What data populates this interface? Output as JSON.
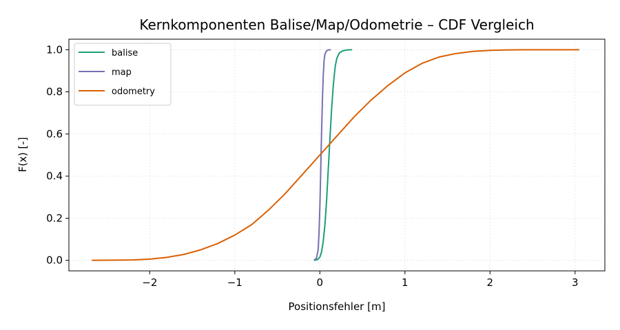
{
  "chart_data": {
    "type": "line",
    "title": "Kernkomponenten Balise/Map/Odometrie – CDF Vergleich",
    "xlabel": "Positionsfehler [m]",
    "ylabel": "F(x) [-]",
    "xlim": [
      -2.95,
      3.35
    ],
    "ylim": [
      -0.05,
      1.05
    ],
    "xticks": [
      -2,
      -1,
      0,
      1,
      2,
      3
    ],
    "xtick_labels": [
      "−2",
      "−1",
      "0",
      "1",
      "2",
      "3"
    ],
    "yticks": [
      0.0,
      0.2,
      0.4,
      0.6,
      0.8,
      1.0
    ],
    "ytick_labels": [
      "0.0",
      "0.2",
      "0.4",
      "0.6",
      "0.8",
      "1.0"
    ],
    "grid": true,
    "legend_position": "top-left",
    "series": [
      {
        "name": "balise",
        "color": "#1b9e77",
        "x": [
          -0.07,
          -0.03,
          0.0,
          0.02,
          0.04,
          0.06,
          0.08,
          0.1,
          0.12,
          0.14,
          0.16,
          0.18,
          0.2,
          0.23,
          0.27,
          0.32,
          0.38
        ],
        "y": [
          0.0,
          0.003,
          0.015,
          0.04,
          0.09,
          0.17,
          0.29,
          0.44,
          0.59,
          0.73,
          0.84,
          0.92,
          0.96,
          0.985,
          0.995,
          0.999,
          1.0
        ]
      },
      {
        "name": "map",
        "color": "#7570b3",
        "x": [
          -0.07,
          -0.04,
          -0.02,
          -0.01,
          0.0,
          0.01,
          0.02,
          0.03,
          0.04,
          0.05,
          0.06,
          0.08,
          0.1,
          0.13
        ],
        "y": [
          0.0,
          0.01,
          0.05,
          0.13,
          0.25,
          0.42,
          0.6,
          0.76,
          0.88,
          0.95,
          0.98,
          0.995,
          0.999,
          1.0
        ]
      },
      {
        "name": "odometry",
        "color": "#d95f02",
        "x": [
          -2.68,
          -2.4,
          -2.2,
          -2.0,
          -1.8,
          -1.6,
          -1.4,
          -1.2,
          -1.0,
          -0.8,
          -0.6,
          -0.4,
          -0.2,
          0.0,
          0.2,
          0.4,
          0.6,
          0.8,
          1.0,
          1.2,
          1.4,
          1.6,
          1.8,
          2.0,
          2.2,
          2.5,
          2.8,
          3.05
        ],
        "y": [
          0.0,
          0.001,
          0.002,
          0.006,
          0.014,
          0.028,
          0.05,
          0.08,
          0.12,
          0.17,
          0.24,
          0.32,
          0.41,
          0.5,
          0.59,
          0.68,
          0.76,
          0.83,
          0.89,
          0.935,
          0.965,
          0.982,
          0.992,
          0.997,
          0.999,
          1.0,
          1.0,
          1.0
        ]
      }
    ]
  }
}
